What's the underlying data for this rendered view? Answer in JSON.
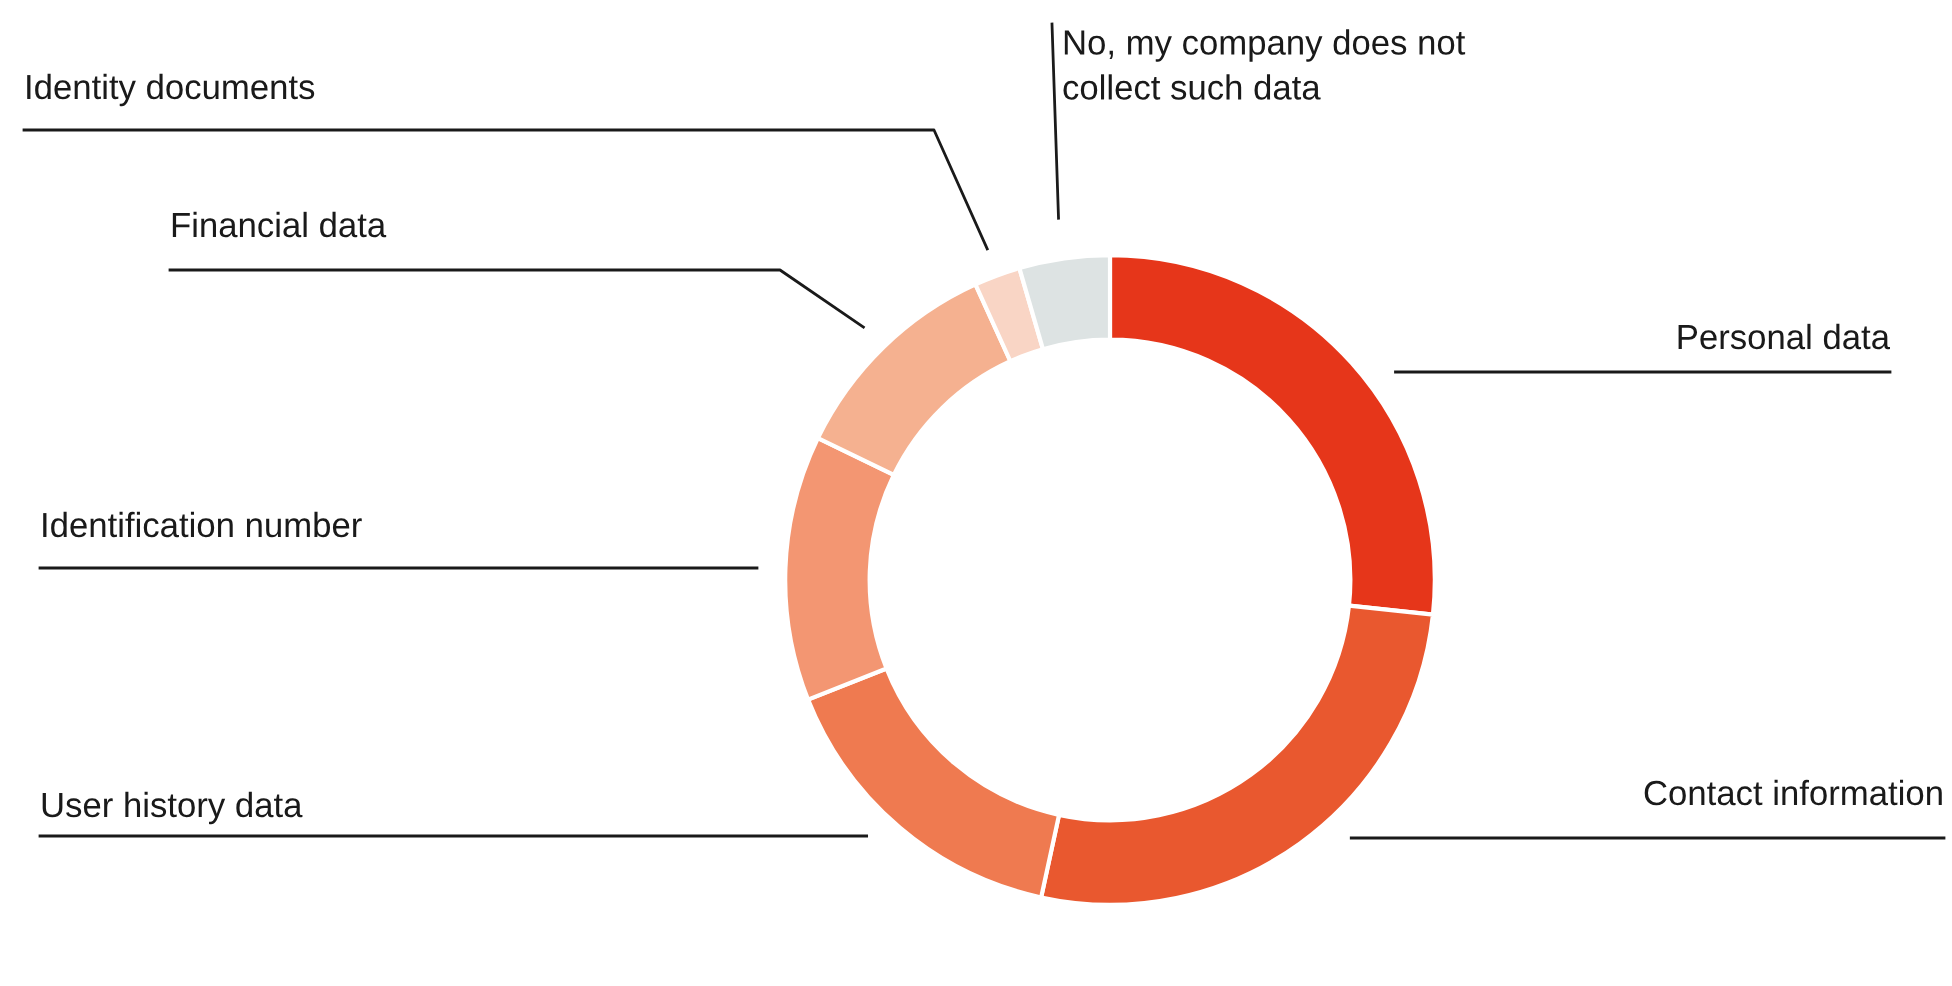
{
  "chart_data": {
    "type": "donut",
    "categories": [
      "Personal data",
      "Contact information",
      "User history data",
      "Identification number",
      "Financial data",
      "Identity documents",
      "No, my company does not\ncollect such data"
    ],
    "values": [
      26.7,
      26.7,
      15.6,
      13.2,
      11.0,
      2.3,
      4.5
    ],
    "colors": [
      "#e6361a",
      "#e9582f",
      "#ef7a50",
      "#f39672",
      "#f5b190",
      "#f9d5c5",
      "#dde3e3"
    ],
    "legend": false
  }
}
